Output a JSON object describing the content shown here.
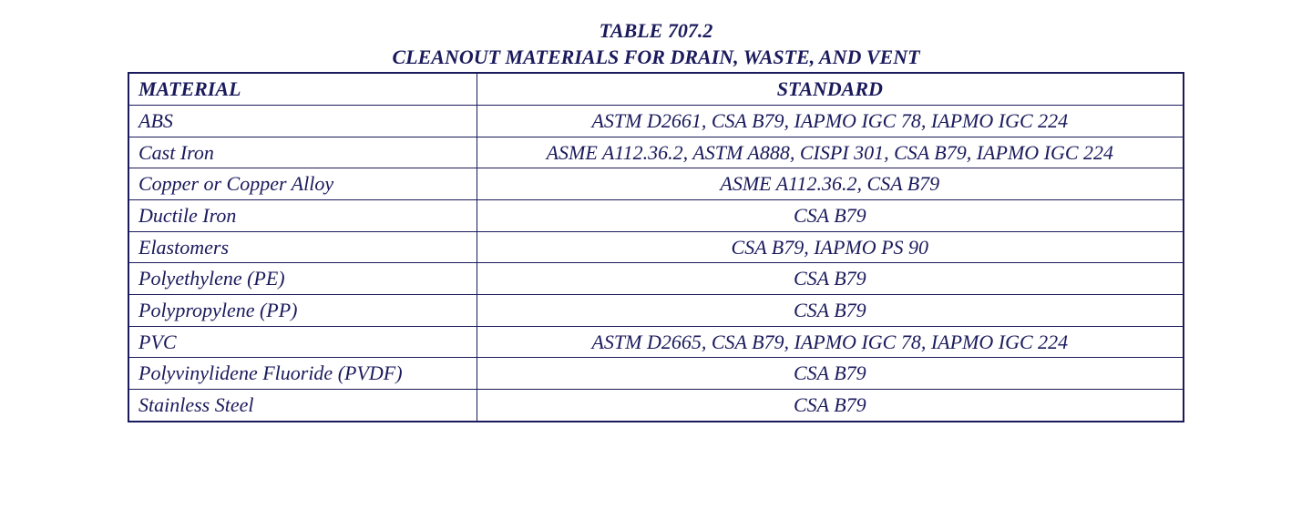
{
  "table": {
    "number": "TABLE 707.2",
    "title": "CLEANOUT MATERIALS FOR DRAIN, WASTE, AND VENT",
    "columns": [
      "MATERIAL",
      "STANDARD"
    ],
    "rows": [
      {
        "material": "ABS",
        "standard": "ASTM D2661, CSA B79, IAPMO IGC 78, IAPMO IGC 224"
      },
      {
        "material": "Cast Iron",
        "standard": "ASME A112.36.2, ASTM A888, CISPI 301, CSA B79, IAPMO IGC 224"
      },
      {
        "material": "Copper or Copper Alloy",
        "standard": "ASME A112.36.2, CSA B79"
      },
      {
        "material": "Ductile Iron",
        "standard": "CSA B79"
      },
      {
        "material": "Elastomers",
        "standard": "CSA B79, IAPMO PS 90"
      },
      {
        "material": "Polyethylene (PE)",
        "standard": "CSA B79"
      },
      {
        "material": "Polypropylene (PP)",
        "standard": "CSA B79"
      },
      {
        "material": "PVC",
        "standard": "ASTM D2665, CSA B79, IAPMO IGC 78, IAPMO IGC 224"
      },
      {
        "material": "Polyvinylidene Fluoride (PVDF)",
        "standard": "CSA B79"
      },
      {
        "material": "Stainless Steel",
        "standard": "CSA B79"
      }
    ],
    "colors": {
      "text": "#1a1a5c",
      "border": "#1a1a5c",
      "background": "#ffffff"
    },
    "font": {
      "family": "Times New Roman",
      "title_size": 22,
      "header_size": 22,
      "cell_size": 22,
      "style": "italic",
      "title_weight": "bold",
      "header_weight": "bold"
    },
    "column_widths": [
      "33%",
      "67%"
    ],
    "column_align": [
      "left",
      "center"
    ]
  }
}
